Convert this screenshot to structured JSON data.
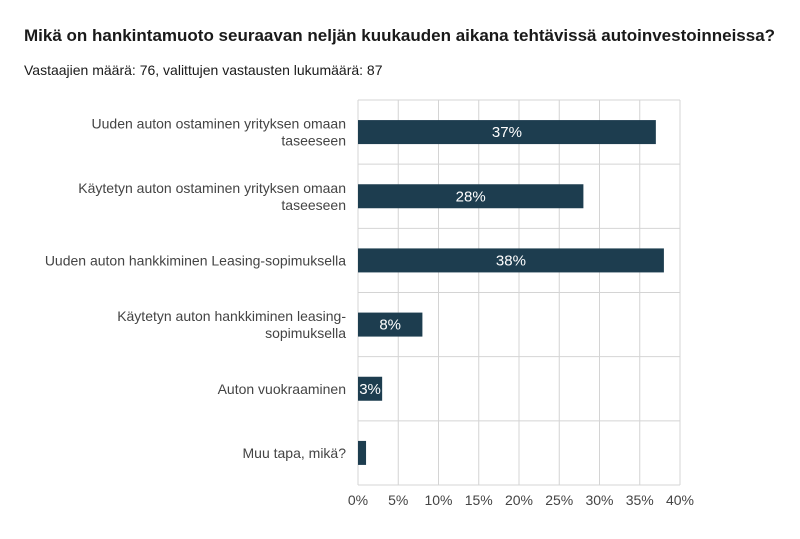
{
  "chart_data": {
    "type": "bar",
    "orientation": "horizontal",
    "title": "Mikä on hankintamuoto seuraavan neljän kuukauden aikana tehtävissä autoinvestoinneissa?",
    "subtitle": "Vastaajien määrä: 76, valittujen vastausten lukumäärä: 87",
    "categories": [
      [
        "Uuden auton ostaminen yrityksen omaan",
        "taseeseen"
      ],
      [
        "Käytetyn auton ostaminen yrityksen omaan",
        "taseeseen"
      ],
      [
        "Uuden auton hankkiminen Leasing-sopimuksella"
      ],
      [
        "Käytetyn auton hankkiminen leasing-",
        "sopimuksella"
      ],
      [
        "Auton vuokraaminen"
      ],
      [
        "Muu tapa, mikä?"
      ]
    ],
    "values": [
      37,
      28,
      38,
      8,
      3,
      1
    ],
    "data_labels": [
      "37%",
      "28%",
      "38%",
      "8%",
      "3%",
      ""
    ],
    "xlim": [
      0,
      40
    ],
    "ticks": [
      "0%",
      "5%",
      "10%",
      "15%",
      "20%",
      "25%",
      "30%",
      "35%",
      "40%"
    ],
    "grid": true,
    "bar_color": "#1d3d4f",
    "grid_color": "#d4d4d4"
  }
}
